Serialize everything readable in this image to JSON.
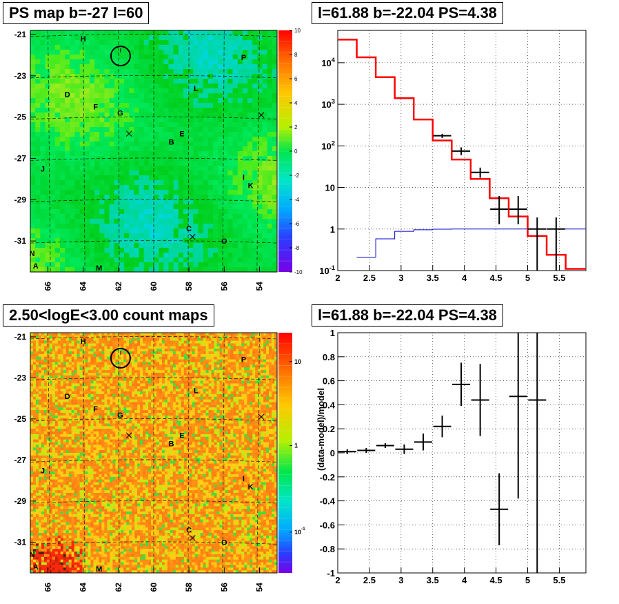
{
  "titles": {
    "tl": "PS map b=-27 l=60",
    "tr": "l=61.88 b=-22.04 PS=4.38",
    "bl": "2.50<logE<3.00 count maps",
    "br": "l=61.88 b=-22.04 PS=4.38"
  },
  "colors": {
    "data": "#000000",
    "model": "#ff0000",
    "background_model": "#0000cc",
    "map_top_base": "#22ee55",
    "map_bottom_base": "#ff9a2a"
  },
  "chart_data": [
    {
      "type": "heatmap",
      "title": "PS map b=-27 l=60",
      "x_ticks": [
        "66",
        "64",
        "62",
        "60",
        "58",
        "56",
        "54"
      ],
      "y_ticks": [
        "-21",
        "-23",
        "-25",
        "-27",
        "-29",
        "-31"
      ],
      "xlim": [
        67,
        53
      ],
      "ylim": [
        -32.5,
        -20.8
      ],
      "colorbar_ticks": [
        "10",
        "8",
        "6",
        "4",
        "2",
        "0",
        "-2",
        "-4",
        "-6",
        "-8",
        "-10"
      ],
      "colorbar_range": [
        -10,
        10
      ],
      "source_labels": [
        {
          "name": "H",
          "l": 64.0,
          "b": -21.2
        },
        {
          "name": "P",
          "l": 54.9,
          "b": -22.1
        },
        {
          "name": "D",
          "l": 64.9,
          "b": -23.9
        },
        {
          "name": "L",
          "l": 57.6,
          "b": -23.6
        },
        {
          "name": "F",
          "l": 63.3,
          "b": -24.5
        },
        {
          "name": "G",
          "l": 61.9,
          "b": -24.8
        },
        {
          "name": "E",
          "l": 58.4,
          "b": -25.8
        },
        {
          "name": "B",
          "l": 59.0,
          "b": -26.2
        },
        {
          "name": "J",
          "l": 66.3,
          "b": -27.5
        },
        {
          "name": "I",
          "l": 54.9,
          "b": -27.9
        },
        {
          "name": "K",
          "l": 54.5,
          "b": -28.3
        },
        {
          "name": "C",
          "l": 58.0,
          "b": -30.4
        },
        {
          "name": "O",
          "l": 56.0,
          "b": -31.0
        },
        {
          "name": "N",
          "l": 66.9,
          "b": -31.6
        },
        {
          "name": "A",
          "l": 66.7,
          "b": -32.2
        },
        {
          "name": "M",
          "l": 63.1,
          "b": -32.3
        }
      ],
      "crosses": [
        {
          "l": 61.4,
          "b": -25.8
        },
        {
          "l": 57.8,
          "b": -30.8
        },
        {
          "l": 53.9,
          "b": -24.9
        }
      ],
      "circle": {
        "l": 61.88,
        "b": -22.04
      }
    },
    {
      "type": "line",
      "title": "l=61.88 b=-22.04 PS=4.38",
      "yscale": "log",
      "xlim": [
        2.0,
        5.92
      ],
      "ylim": [
        0.1,
        60000
      ],
      "x_ticks": [
        "2",
        "2.5",
        "3",
        "3.5",
        "4",
        "4.5",
        "5",
        "5.5"
      ],
      "y_ticks": [
        "10^-1",
        "1",
        "10",
        "10^2",
        "10^3",
        "10^4"
      ],
      "bin_edges": [
        2.0,
        2.3,
        2.6,
        2.9,
        3.2,
        3.5,
        3.8,
        4.1,
        4.4,
        4.7,
        5.0,
        5.3,
        5.6,
        5.92
      ],
      "series": [
        {
          "values": [
            36000,
            13500,
            4500,
            1400,
            430,
            135,
            47,
            16,
            5.5,
            2.0,
            0.68,
            0.24,
            0.11
          ]
        },
        {
          "values": [
            0.0,
            0.21,
            0.58,
            0.88,
            0.96,
            0.99,
            1.0,
            1.0,
            1.0,
            1.0,
            1.0,
            1.0,
            1.0
          ]
        },
        {
          "type": "errorbar",
          "x": [
            3.65,
            3.95,
            4.25,
            4.55,
            4.85,
            5.15,
            5.45
          ],
          "values": [
            175,
            75,
            23,
            3.0,
            3.0,
            1.0,
            1.0
          ],
          "err_low": [
            155,
            60,
            17,
            1.3,
            1.3,
            0.1,
            0.1
          ],
          "err_high": [
            195,
            92,
            30,
            6.2,
            6.2,
            1.9,
            1.9
          ]
        }
      ]
    },
    {
      "type": "heatmap",
      "title": "2.50<logE<3.00 count maps",
      "x_ticks": [
        "66",
        "64",
        "62",
        "60",
        "58",
        "56",
        "54"
      ],
      "y_ticks": [
        "-21",
        "-23",
        "-25",
        "-27",
        "-29",
        "-31"
      ],
      "xlim": [
        67,
        53
      ],
      "ylim": [
        -32.5,
        -20.8
      ],
      "colorbar_ticks": [
        "10",
        "1",
        "10^-1"
      ],
      "colorbar_scale": "log"
    },
    {
      "type": "scatter",
      "title": "l=61.88 b=-22.04 PS=4.38",
      "ylabel": "(data-model)/model",
      "xlim": [
        2.0,
        5.92
      ],
      "ylim": [
        -1,
        1
      ],
      "x_ticks": [
        "2",
        "2.5",
        "3",
        "3.5",
        "4",
        "4.5",
        "5",
        "5.5"
      ],
      "y_ticks": [
        "1",
        "0.8",
        "0.6",
        "0.4",
        "0.2",
        "0",
        "-0.2",
        "-0.4",
        "-0.6",
        "-0.8",
        "-1"
      ],
      "series": [
        {
          "x": [
            2.15,
            2.45,
            2.75,
            3.05,
            3.35,
            3.65,
            3.95,
            4.25,
            4.55,
            4.85,
            5.15
          ],
          "values": [
            0.01,
            0.02,
            0.06,
            0.03,
            0.09,
            0.22,
            0.57,
            0.44,
            -0.47,
            0.47,
            0.44
          ],
          "err": [
            0.02,
            0.02,
            0.02,
            0.04,
            0.07,
            0.09,
            0.18,
            0.3,
            0.3,
            0.85,
            1.45
          ]
        }
      ]
    }
  ]
}
